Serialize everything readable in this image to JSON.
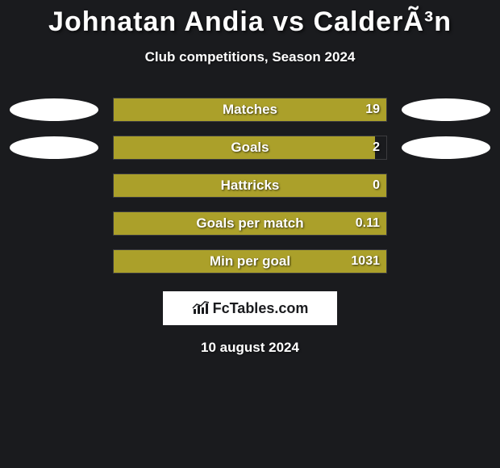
{
  "title": "Johnatan Andia vs CalderÃ³n",
  "subtitle": "Club competitions, Season 2024",
  "date": "10 august 2024",
  "logo_text": "FcTables.com",
  "colors": {
    "background": "#1a1b1e",
    "bar_fill": "#aba02a",
    "oval": "#ffffff",
    "text": "#ffffff",
    "logo_bg": "#ffffff",
    "logo_text": "#1a1b1e"
  },
  "stats": [
    {
      "label": "Matches",
      "value": "19",
      "fill_pct": 100,
      "left_oval": true,
      "right_oval": true
    },
    {
      "label": "Goals",
      "value": "2",
      "fill_pct": 96,
      "left_oval": true,
      "right_oval": true
    },
    {
      "label": "Hattricks",
      "value": "0",
      "fill_pct": 100,
      "left_oval": false,
      "right_oval": false
    },
    {
      "label": "Goals per match",
      "value": "0.11",
      "fill_pct": 100,
      "left_oval": false,
      "right_oval": false
    },
    {
      "label": "Min per goal",
      "value": "1031",
      "fill_pct": 100,
      "left_oval": false,
      "right_oval": false
    }
  ]
}
